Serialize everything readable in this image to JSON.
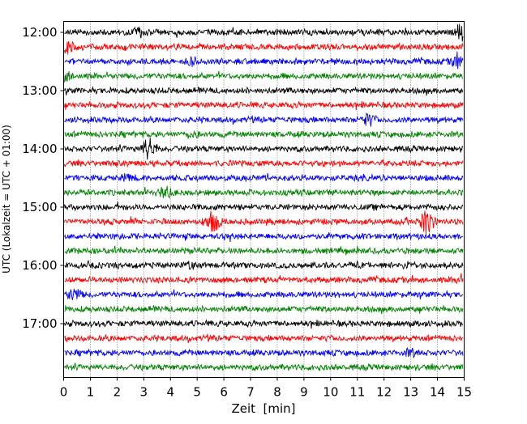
{
  "chart_data": {
    "type": "line",
    "title": "",
    "xlabel": "Zeit  [min]",
    "ylabel": "UTC (Lokalzeit = UTC + 01:00)",
    "xlim": [
      0,
      15
    ],
    "x_ticks": [
      "0",
      "1",
      "2",
      "3",
      "4",
      "5",
      "6",
      "7",
      "8",
      "9",
      "10",
      "11",
      "12",
      "13",
      "14",
      "15"
    ],
    "y_tick_labels": [
      "12:00",
      "13:00",
      "14:00",
      "15:00",
      "16:00",
      "17:00"
    ],
    "grid": "vertical dotted at each minute",
    "trace_count": 24,
    "trace_interval_min": 15,
    "start_time": "12:00",
    "colors": [
      "#000000",
      "#ff0000",
      "#0000ff",
      "#008000"
    ],
    "baseline_noise_rel": 1,
    "events": [
      {
        "trace": 0,
        "minute": 2.8,
        "amplitude_rel": 1.8
      },
      {
        "trace": 0,
        "minute": 14.9,
        "amplitude_rel": 2.4
      },
      {
        "trace": 1,
        "minute": 0.1,
        "amplitude_rel": 2.2
      },
      {
        "trace": 2,
        "minute": 4.8,
        "amplitude_rel": 1.5
      },
      {
        "trace": 2,
        "minute": 14.8,
        "amplitude_rel": 2.2
      },
      {
        "trace": 3,
        "minute": 0.1,
        "amplitude_rel": 1.8
      },
      {
        "trace": 6,
        "minute": 11.4,
        "amplitude_rel": 2.0
      },
      {
        "trace": 7,
        "minute": 4.8,
        "amplitude_rel": 1.4
      },
      {
        "trace": 8,
        "minute": 3.2,
        "amplitude_rel": 3.0
      },
      {
        "trace": 10,
        "minute": 2.4,
        "amplitude_rel": 1.4
      },
      {
        "trace": 11,
        "minute": 3.8,
        "amplitude_rel": 2.0
      },
      {
        "trace": 13,
        "minute": 5.6,
        "amplitude_rel": 3.0
      },
      {
        "trace": 13,
        "minute": 13.6,
        "amplitude_rel": 3.2
      },
      {
        "trace": 16,
        "minute": 4.7,
        "amplitude_rel": 1.4
      },
      {
        "trace": 16,
        "minute": 13.0,
        "amplitude_rel": 1.4
      },
      {
        "trace": 17,
        "minute": 14.9,
        "amplitude_rel": 1.6
      },
      {
        "trace": 18,
        "minute": 0.4,
        "amplitude_rel": 2.0
      },
      {
        "trace": 22,
        "minute": 13.0,
        "amplitude_rel": 1.5
      }
    ]
  }
}
